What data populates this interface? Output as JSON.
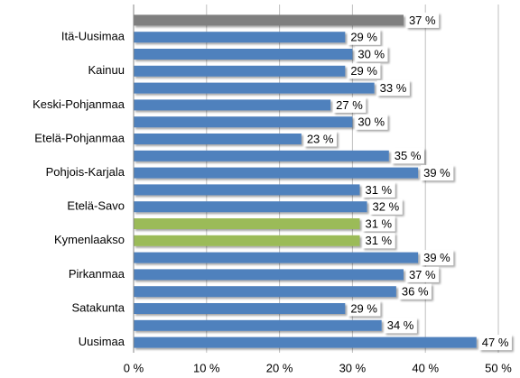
{
  "chart_data": {
    "type": "bar",
    "orientation": "horizontal",
    "categories": [
      null,
      "Itä-Uusimaa",
      null,
      "Kainuu",
      null,
      "Keski-Pohjanmaa",
      null,
      "Etelä-Pohjanmaa",
      null,
      "Pohjois-Karjala",
      null,
      "Etelä-Savo",
      null,
      "Kymenlaakso",
      null,
      "Pirkanmaa",
      null,
      "Satakunta",
      null,
      "Uusimaa"
    ],
    "values": [
      37,
      29,
      30,
      29,
      33,
      27,
      30,
      23,
      35,
      39,
      31,
      32,
      31,
      31,
      39,
      37,
      36,
      29,
      34,
      47
    ],
    "value_labels": [
      "37 %",
      "29 %",
      "30 %",
      "29 %",
      "33 %",
      "27 %",
      "30 %",
      "23 %",
      "35 %",
      "39 %",
      "31 %",
      "32 %",
      "31 %",
      "31 %",
      "39 %",
      "37 %",
      "36 %",
      "29 %",
      "34 %",
      "47 %"
    ],
    "colors": [
      "#7f7f7f",
      "#4f81bd",
      "#4f81bd",
      "#4f81bd",
      "#4f81bd",
      "#4f81bd",
      "#4f81bd",
      "#4f81bd",
      "#4f81bd",
      "#4f81bd",
      "#4f81bd",
      "#4f81bd",
      "#9bbb59",
      "#9bbb59",
      "#4f81bd",
      "#4f81bd",
      "#4f81bd",
      "#4f81bd",
      "#4f81bd",
      "#4f81bd"
    ],
    "xlim": [
      0,
      50
    ],
    "xticks": [
      {
        "value": 0,
        "label": "0 %"
      },
      {
        "value": 10,
        "label": "10 %"
      },
      {
        "value": 20,
        "label": "20 %"
      },
      {
        "value": 30,
        "label": "30 %"
      },
      {
        "value": 40,
        "label": "40 %"
      },
      {
        "value": 50,
        "label": "50 %"
      }
    ],
    "grid": true
  }
}
